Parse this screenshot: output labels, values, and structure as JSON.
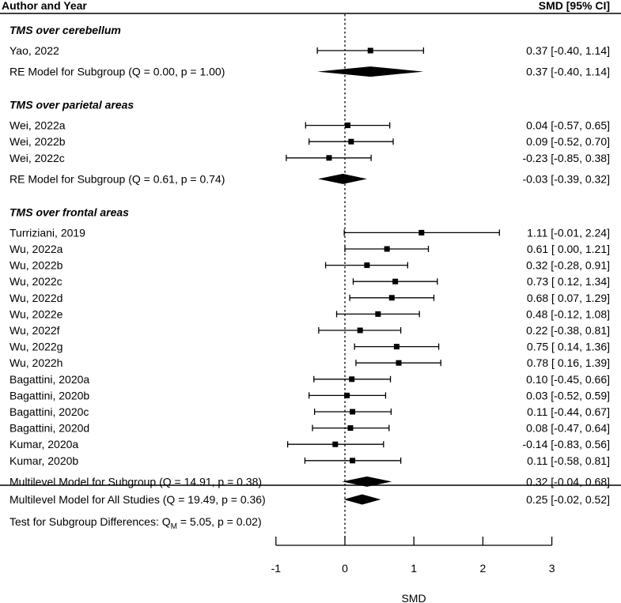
{
  "header": {
    "left_label": "Author and Year",
    "right_label": "SMD [95% CI]"
  },
  "colors": {
    "ink": "#000000",
    "background": "#ffffff"
  },
  "chart_data": {
    "type": "forest",
    "xlabel": "SMD",
    "xlim": [
      -1,
      3
    ],
    "xticks": [
      -1,
      0,
      1,
      2,
      3
    ],
    "reference_line": 0,
    "subgroups": [
      {
        "title": "TMS over cerebellum",
        "studies": [
          {
            "label": "Yao,  2022",
            "est": 0.37,
            "lo": -0.4,
            "hi": 1.14,
            "ci_text": "0.37 [-0.40, 1.14]"
          }
        ],
        "summary": {
          "label": "RE Model for Subgroup (Q = 0.00, p = 1.00)",
          "est": 0.37,
          "lo": -0.4,
          "hi": 1.14,
          "ci_text": "0.37 [-0.40, 1.14]"
        }
      },
      {
        "title": "TMS over parietal areas",
        "studies": [
          {
            "label": "Wei,  2022a",
            "est": 0.04,
            "lo": -0.57,
            "hi": 0.65,
            "ci_text": "0.04 [-0.57, 0.65]"
          },
          {
            "label": "Wei,  2022b",
            "est": 0.09,
            "lo": -0.52,
            "hi": 0.7,
            "ci_text": "0.09 [-0.52, 0.70]"
          },
          {
            "label": "Wei,  2022c",
            "est": -0.23,
            "lo": -0.85,
            "hi": 0.38,
            "ci_text": "-0.23 [-0.85, 0.38]"
          }
        ],
        "summary": {
          "label": "RE Model for Subgroup (Q = 0.61, p = 0.74)",
          "est": -0.03,
          "lo": -0.39,
          "hi": 0.32,
          "ci_text": "-0.03 [-0.39, 0.32]"
        }
      },
      {
        "title": "TMS over frontal areas",
        "studies": [
          {
            "label": "Turriziani,  2019",
            "est": 1.11,
            "lo": -0.01,
            "hi": 2.24,
            "ci_text": "1.11 [-0.01, 2.24]"
          },
          {
            "label": "Wu,  2022a",
            "est": 0.61,
            "lo": 0.0,
            "hi": 1.21,
            "ci_text": "0.61 [ 0.00, 1.21]"
          },
          {
            "label": "Wu,  2022b",
            "est": 0.32,
            "lo": -0.28,
            "hi": 0.91,
            "ci_text": "0.32 [-0.28, 0.91]"
          },
          {
            "label": "Wu,  2022c",
            "est": 0.73,
            "lo": 0.12,
            "hi": 1.34,
            "ci_text": "0.73 [ 0.12, 1.34]"
          },
          {
            "label": "Wu,  2022d",
            "est": 0.68,
            "lo": 0.07,
            "hi": 1.29,
            "ci_text": "0.68 [ 0.07, 1.29]"
          },
          {
            "label": "Wu,  2022e",
            "est": 0.48,
            "lo": -0.12,
            "hi": 1.08,
            "ci_text": "0.48 [-0.12, 1.08]"
          },
          {
            "label": "Wu,  2022f",
            "est": 0.22,
            "lo": -0.38,
            "hi": 0.81,
            "ci_text": "0.22 [-0.38, 0.81]"
          },
          {
            "label": "Wu,  2022g",
            "est": 0.75,
            "lo": 0.14,
            "hi": 1.36,
            "ci_text": "0.75 [ 0.14, 1.36]"
          },
          {
            "label": "Wu,  2022h",
            "est": 0.78,
            "lo": 0.16,
            "hi": 1.39,
            "ci_text": "0.78 [ 0.16, 1.39]"
          },
          {
            "label": "Bagattini,  2020a",
            "est": 0.1,
            "lo": -0.45,
            "hi": 0.66,
            "ci_text": "0.10 [-0.45, 0.66]"
          },
          {
            "label": "Bagattini,  2020b",
            "est": 0.03,
            "lo": -0.52,
            "hi": 0.59,
            "ci_text": "0.03 [-0.52, 0.59]"
          },
          {
            "label": "Bagattini,  2020c",
            "est": 0.11,
            "lo": -0.44,
            "hi": 0.67,
            "ci_text": "0.11 [-0.44, 0.67]"
          },
          {
            "label": "Bagattini,  2020d",
            "est": 0.08,
            "lo": -0.47,
            "hi": 0.64,
            "ci_text": "0.08 [-0.47, 0.64]"
          },
          {
            "label": "Kumar,  2020a",
            "est": -0.14,
            "lo": -0.83,
            "hi": 0.56,
            "ci_text": "-0.14 [-0.83, 0.56]"
          },
          {
            "label": "Kumar,  2020b",
            "est": 0.11,
            "lo": -0.58,
            "hi": 0.81,
            "ci_text": "0.11 [-0.58, 0.81]"
          }
        ],
        "summary": {
          "label": "Multilevel Model for Subgroup (Q = 14.91, p = 0.38)",
          "est": 0.32,
          "lo": -0.04,
          "hi": 0.68,
          "ci_text": "0.32 [-0.04, 0.68]"
        }
      }
    ],
    "overall": {
      "label": "Multilevel Model for All Studies (Q = 19.49, p = 0.36)",
      "est": 0.25,
      "lo": -0.02,
      "hi": 0.52,
      "ci_text": "0.25 [-0.02, 0.52]"
    },
    "subgroup_test": {
      "prefix": "Test for Subgroup Differences: Q",
      "subscript": "M",
      "suffix": " = 5.05, p = 0.02)"
    }
  }
}
